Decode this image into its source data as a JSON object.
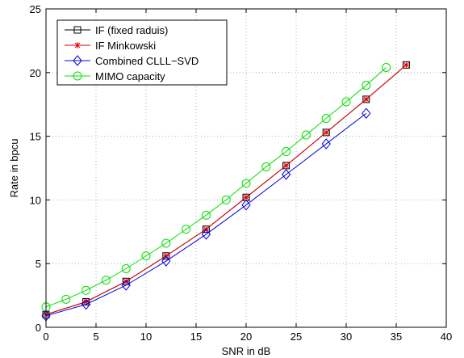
{
  "chart_data": {
    "type": "line",
    "title": "",
    "xlabel": "SNR in dB",
    "ylabel": "Rate in bpcu",
    "xlim": [
      0,
      40
    ],
    "ylim": [
      0,
      25
    ],
    "xticks": [
      0,
      5,
      10,
      15,
      20,
      25,
      30,
      35,
      40
    ],
    "yticks": [
      0,
      5,
      10,
      15,
      20,
      25
    ],
    "grid": true,
    "legend_position": "top-left",
    "series": [
      {
        "name": "IF (fixed raduis)",
        "color": "#000000",
        "marker": "square",
        "x": [
          0,
          4,
          8,
          12,
          16,
          20,
          24,
          28,
          32,
          36
        ],
        "y": [
          1.0,
          2.0,
          3.6,
          5.6,
          7.7,
          10.2,
          12.7,
          15.3,
          17.9,
          20.6
        ]
      },
      {
        "name": "IF Minkowski",
        "color": "#e00000",
        "marker": "star",
        "x": [
          0,
          4,
          8,
          12,
          16,
          20,
          24,
          28,
          32,
          36
        ],
        "y": [
          1.0,
          2.0,
          3.6,
          5.6,
          7.7,
          10.2,
          12.7,
          15.3,
          17.9,
          20.6
        ]
      },
      {
        "name": "Combined CLLL−SVD",
        "color": "#0000e0",
        "marker": "diamond",
        "x": [
          0,
          4,
          8,
          12,
          16,
          20,
          24,
          28,
          32
        ],
        "y": [
          0.9,
          1.8,
          3.3,
          5.2,
          7.3,
          9.6,
          12.0,
          14.4,
          16.8
        ]
      },
      {
        "name": "MIMO capacity",
        "color": "#00e000",
        "marker": "circle",
        "x": [
          0,
          2,
          4,
          6,
          8,
          10,
          12,
          14,
          16,
          18,
          20,
          22,
          24,
          26,
          28,
          30,
          32,
          34
        ],
        "y": [
          1.6,
          2.2,
          2.9,
          3.7,
          4.6,
          5.6,
          6.6,
          7.7,
          8.8,
          10.0,
          11.3,
          12.6,
          13.8,
          15.1,
          16.4,
          17.7,
          19.0,
          20.4
        ]
      }
    ]
  }
}
